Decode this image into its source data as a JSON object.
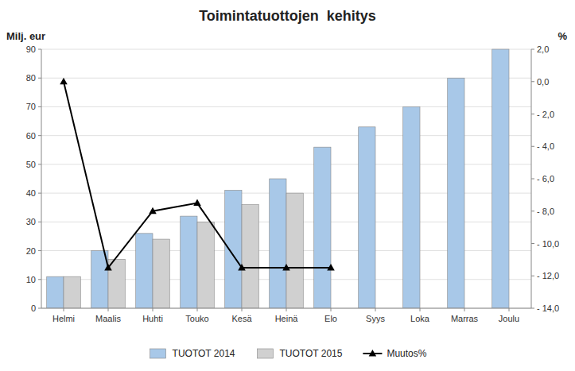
{
  "chart_data": {
    "type": "bar",
    "title": "Toimintatuottojen  kehitys",
    "y_label": "Milj. eur",
    "y2_label": "%",
    "categories": [
      "Helmi",
      "Maalis",
      "Huhti",
      "Touko",
      "Kesä",
      "Heinä",
      "Elo",
      "Syys",
      "Loka",
      "Marras",
      "Joulu"
    ],
    "series": [
      {
        "name": "TUOTOT 2014",
        "color": "#a8c8e8",
        "values": [
          11,
          20,
          26,
          32,
          41,
          45,
          56,
          63,
          70,
          80,
          90
        ]
      },
      {
        "name": "TUOTOT 2015",
        "color": "#d0d0d0",
        "values": [
          11,
          17,
          24,
          30,
          36,
          40,
          null,
          null,
          null,
          null,
          null
        ]
      },
      {
        "name": "Muutos%",
        "type": "line",
        "axis": "y2",
        "color": "#000000",
        "marker": "triangle",
        "values": [
          0.0,
          -11.5,
          -8.0,
          -7.5,
          -11.5,
          -11.5,
          -11.5,
          null,
          null,
          null,
          null
        ]
      }
    ],
    "ylim": [
      0,
      90
    ],
    "yticks": [
      0,
      10,
      20,
      30,
      40,
      50,
      60,
      70,
      80,
      90
    ],
    "y2lim": [
      -14.0,
      2.0
    ],
    "y2ticks": [
      {
        "value": -14,
        "label": "- 14,0"
      },
      {
        "value": -12,
        "label": "- 12,0"
      },
      {
        "value": -10,
        "label": "- 10,0"
      },
      {
        "value": -8,
        "label": "- 8,0"
      },
      {
        "value": -6,
        "label": "- 6,0"
      },
      {
        "value": -4,
        "label": "- 4,0"
      },
      {
        "value": -2,
        "label": "- 2,0"
      },
      {
        "value": 0,
        "label": "0,0"
      },
      {
        "value": 2,
        "label": "2,0"
      }
    ],
    "grid": true,
    "legend": "bottom"
  }
}
